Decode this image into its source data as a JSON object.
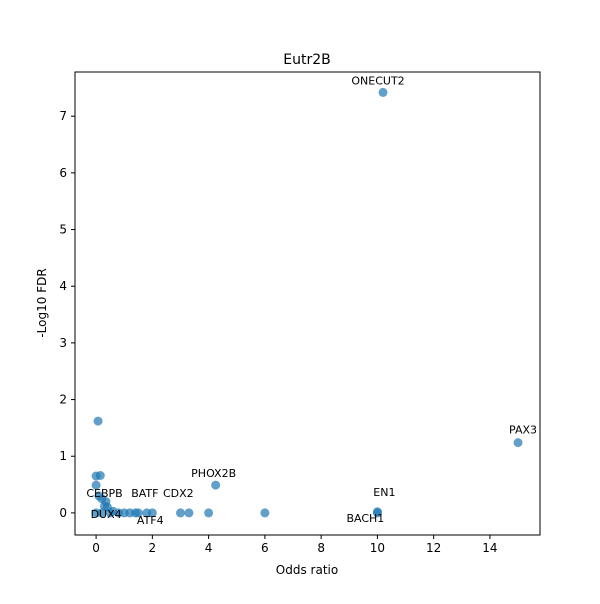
{
  "chart_data": {
    "type": "scatter",
    "title": "Eutr2B",
    "xlabel": "Odds ratio",
    "ylabel": "-Log10 FDR",
    "color": "#1f77b4",
    "x": [
      10.2,
      15.0,
      4.25,
      10.0,
      10.0,
      0.3,
      0.0,
      1.2,
      2.0,
      1.5,
      0.07,
      0.0,
      0.15,
      0.0,
      0.1,
      0.2,
      0.35,
      0.4,
      0.6,
      0.8,
      1.0,
      1.4,
      1.8,
      3.0,
      3.3,
      4.0,
      6.0,
      0.2,
      0.5
    ],
    "y": [
      7.42,
      1.24,
      0.49,
      0.02,
      0.0,
      0.12,
      0.0,
      0.0,
      0.0,
      0.0,
      1.62,
      0.65,
      0.66,
      0.49,
      0.3,
      0.25,
      0.2,
      0.1,
      0.03,
      0.0,
      0.0,
      0.0,
      0.0,
      0.0,
      0.0,
      0.0,
      0.0,
      0.0,
      0.0
    ],
    "labels": [
      "ONECUT2",
      "PAX3",
      "PHOX2B",
      "EN1",
      "BACH1",
      "CEBPB",
      "DUX4",
      "BATF",
      "CDX2",
      "ATF4",
      null,
      null,
      null,
      null,
      null,
      null,
      null,
      null,
      null,
      null,
      null,
      null,
      null,
      null,
      null,
      null,
      null,
      null,
      null
    ],
    "xlim": [
      -0.75,
      15.78
    ],
    "ylim": [
      -0.39,
      7.78
    ],
    "xticks": [
      0,
      2,
      4,
      6,
      8,
      10,
      12,
      14
    ],
    "yticks": [
      0,
      1,
      2,
      3,
      4,
      5,
      6,
      7
    ]
  }
}
